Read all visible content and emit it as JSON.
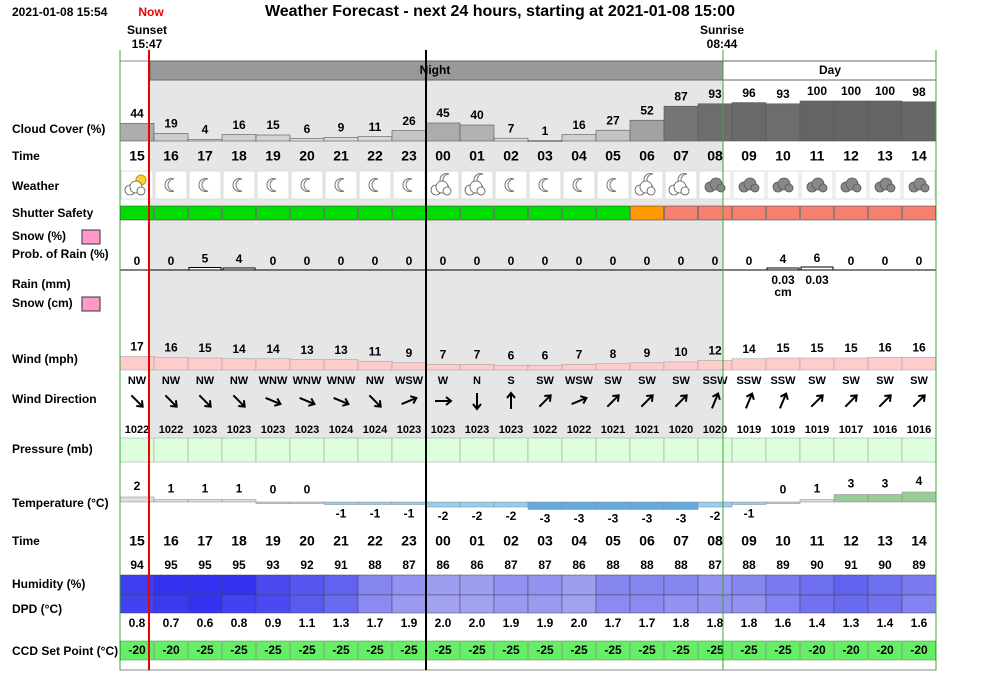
{
  "header": {
    "timestamp": "2021-01-08 15:54",
    "now": "Now",
    "title": "Weather Forecast - next 24 hours, starting at 2021-01-08 15:00",
    "sunset": {
      "label": "Sunset",
      "time": "15:47"
    },
    "sunrise": {
      "label": "Sunrise",
      "time": "08:44"
    }
  },
  "periods": {
    "night": "Night",
    "day": "Day"
  },
  "row_labels": {
    "cloud_cover": "Cloud Cover (%)",
    "time": "Time",
    "weather": "Weather",
    "shutter_safety": "Shutter Safety",
    "snow_pct": "Snow (%)",
    "prob_rain": "Prob. of Rain (%)",
    "rain_mm": "Rain (mm)",
    "snow_cm": "Snow (cm)",
    "wind": "Wind (mph)",
    "wind_direction": "Wind Direction",
    "pressure": "Pressure (mb)",
    "temperature": "Temperature (°C)",
    "humidity": "Humidity (%)",
    "dpd": "DPD (°C)",
    "ccd_set_point": "CCD Set Point (°C)"
  },
  "times": [
    "15",
    "16",
    "17",
    "18",
    "19",
    "20",
    "21",
    "22",
    "23",
    "00",
    "01",
    "02",
    "03",
    "04",
    "05",
    "06",
    "07",
    "08",
    "09",
    "10",
    "11",
    "12",
    "13",
    "14"
  ],
  "cloud_cover": [
    44,
    19,
    4,
    16,
    15,
    6,
    9,
    11,
    26,
    45,
    40,
    7,
    1,
    16,
    27,
    52,
    87,
    93,
    96,
    93,
    100,
    100,
    100,
    98
  ],
  "shutter_safety": [
    "#00dd00",
    "#00dd00",
    "#00dd00",
    "#00dd00",
    "#00dd00",
    "#00dd00",
    "#00dd00",
    "#00dd00",
    "#00dd00",
    "#00dd00",
    "#00dd00",
    "#00dd00",
    "#00dd00",
    "#00dd00",
    "#00dd00",
    "#ff9900",
    "#f88070",
    "#f88070",
    "#f88070",
    "#f88070",
    "#f88070",
    "#f88070",
    "#f88070",
    "#f88070"
  ],
  "prob_rain": [
    0,
    0,
    5,
    4,
    0,
    0,
    0,
    0,
    0,
    0,
    0,
    0,
    0,
    0,
    0,
    0,
    0,
    0,
    0,
    4,
    6,
    0,
    0,
    0
  ],
  "precip_amounts": [
    null,
    null,
    null,
    null,
    null,
    null,
    null,
    null,
    null,
    null,
    null,
    null,
    null,
    null,
    null,
    null,
    null,
    null,
    null,
    "0.03",
    "0.03",
    null,
    null,
    null
  ],
  "precip_units": [
    null,
    null,
    null,
    null,
    null,
    null,
    null,
    null,
    null,
    null,
    null,
    null,
    null,
    null,
    null,
    null,
    null,
    null,
    null,
    "cm",
    null,
    null,
    null,
    null
  ],
  "wind": [
    17,
    16,
    15,
    14,
    14,
    13,
    13,
    11,
    9,
    7,
    7,
    6,
    6,
    7,
    8,
    9,
    10,
    12,
    14,
    15,
    15,
    15,
    16,
    16
  ],
  "wind_direction": [
    "NW",
    "NW",
    "NW",
    "NW",
    "WNW",
    "WNW",
    "WNW",
    "NW",
    "WSW",
    "W",
    "N",
    "S",
    "SW",
    "WSW",
    "SW",
    "SW",
    "SW",
    "SSW",
    "SSW",
    "SSW",
    "SW",
    "SW",
    "SW",
    "SW"
  ],
  "pressure": [
    1022,
    1022,
    1023,
    1023,
    1023,
    1023,
    1024,
    1024,
    1023,
    1023,
    1023,
    1023,
    1022,
    1022,
    1021,
    1021,
    1020,
    1020,
    1019,
    1019,
    1019,
    1017,
    1016,
    1016
  ],
  "temperature": [
    2,
    1,
    1,
    1,
    0,
    0,
    -1,
    -1,
    -1,
    -2,
    -2,
    -2,
    -3,
    -3,
    -3,
    -3,
    -3,
    -2,
    -1,
    0,
    1,
    3,
    3,
    4
  ],
  "humidity": [
    94,
    95,
    95,
    95,
    93,
    92,
    91,
    88,
    87,
    86,
    86,
    87,
    87,
    86,
    88,
    88,
    88,
    87,
    88,
    89,
    90,
    91,
    90,
    89
  ],
  "dpd": [
    "0.8",
    "0.7",
    "0.6",
    "0.8",
    "0.9",
    "1.1",
    "1.3",
    "1.7",
    "1.9",
    "2.0",
    "2.0",
    "1.9",
    "1.9",
    "2.0",
    "1.7",
    "1.7",
    "1.8",
    "1.8",
    "1.8",
    "1.6",
    "1.4",
    "1.3",
    "1.4",
    "1.6"
  ],
  "ccd_set_point": [
    -20,
    -20,
    -25,
    -25,
    -25,
    -25,
    -25,
    -25,
    -25,
    -25,
    -25,
    -25,
    -25,
    -25,
    -25,
    -25,
    -25,
    -25,
    -25,
    -25,
    -20,
    -20,
    -20,
    -20
  ]
}
